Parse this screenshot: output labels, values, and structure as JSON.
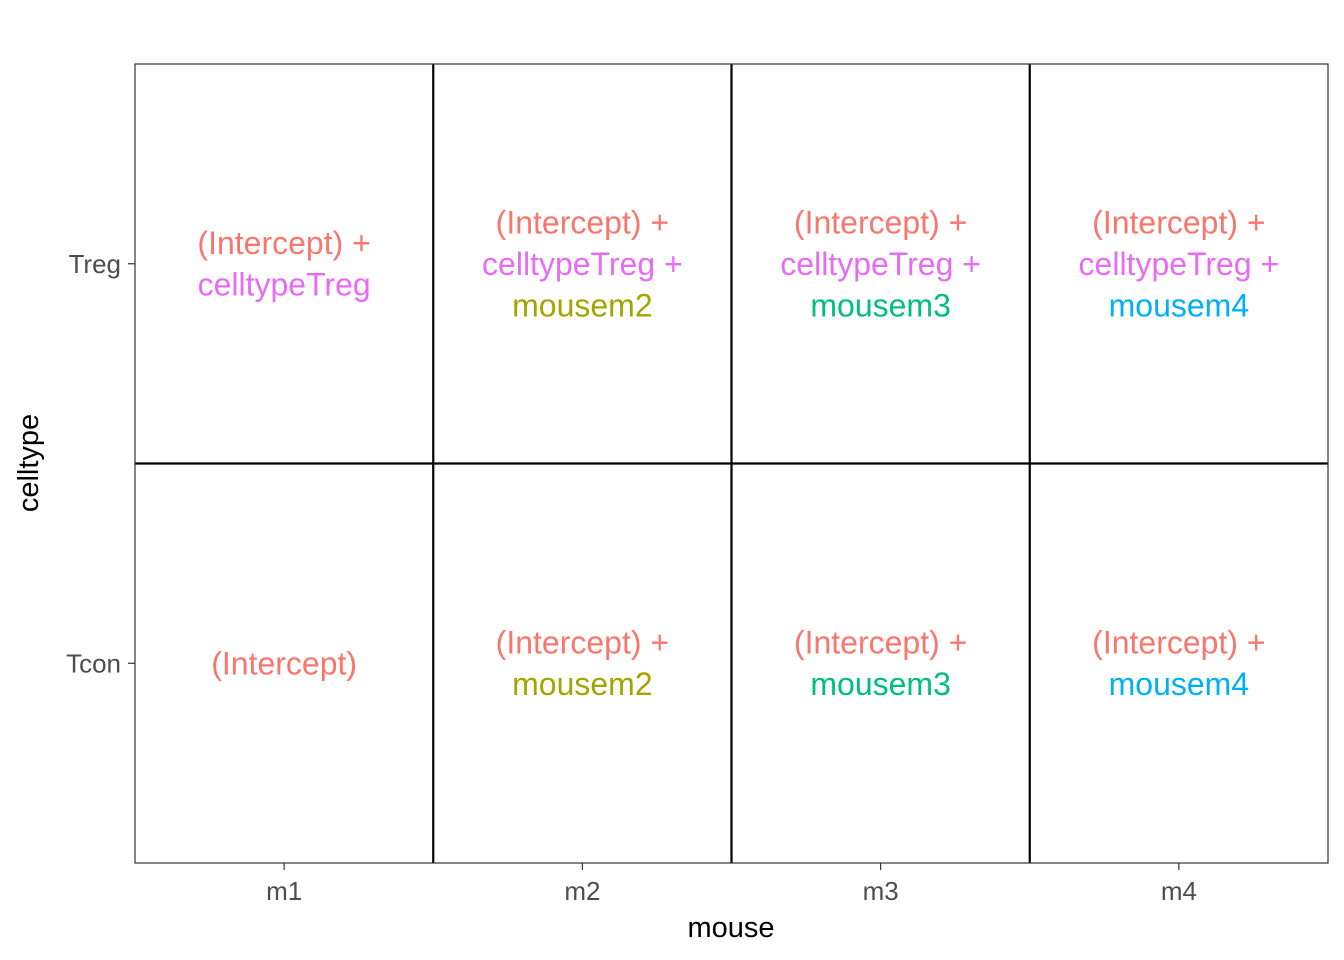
{
  "chart_data": {
    "type": "table",
    "xlabel": "mouse",
    "ylabel": "celltype",
    "x_categories": [
      "m1",
      "m2",
      "m3",
      "m4"
    ],
    "y_categories": [
      "Treg",
      "Tcon"
    ],
    "term_colors": {
      "(Intercept)": "#F8766D",
      "celltypeTreg": "#E76BF3",
      "mousem2": "#A3A500",
      "mousem3": "#00BF7D",
      "mousem4": "#00B0F6"
    },
    "cells": [
      {
        "row": "Treg",
        "col": "m1",
        "lines": [
          {
            "text": "(Intercept) +",
            "term": "(Intercept)"
          },
          {
            "text": "celltypeTreg",
            "term": "celltypeTreg"
          }
        ]
      },
      {
        "row": "Treg",
        "col": "m2",
        "lines": [
          {
            "text": "(Intercept) +",
            "term": "(Intercept)"
          },
          {
            "text": "celltypeTreg +",
            "term": "celltypeTreg"
          },
          {
            "text": "mousem2",
            "term": "mousem2"
          }
        ]
      },
      {
        "row": "Treg",
        "col": "m3",
        "lines": [
          {
            "text": "(Intercept) +",
            "term": "(Intercept)"
          },
          {
            "text": "celltypeTreg +",
            "term": "celltypeTreg"
          },
          {
            "text": "mousem3",
            "term": "mousem3"
          }
        ]
      },
      {
        "row": "Treg",
        "col": "m4",
        "lines": [
          {
            "text": "(Intercept) +",
            "term": "(Intercept)"
          },
          {
            "text": "celltypeTreg +",
            "term": "celltypeTreg"
          },
          {
            "text": "mousem4",
            "term": "mousem4"
          }
        ]
      },
      {
        "row": "Tcon",
        "col": "m1",
        "lines": [
          {
            "text": "(Intercept)",
            "term": "(Intercept)"
          }
        ]
      },
      {
        "row": "Tcon",
        "col": "m2",
        "lines": [
          {
            "text": "(Intercept) +",
            "term": "(Intercept)"
          },
          {
            "text": "mousem2",
            "term": "mousem2"
          }
        ]
      },
      {
        "row": "Tcon",
        "col": "m3",
        "lines": [
          {
            "text": "(Intercept) +",
            "term": "(Intercept)"
          },
          {
            "text": "mousem3",
            "term": "mousem3"
          }
        ]
      },
      {
        "row": "Tcon",
        "col": "m4",
        "lines": [
          {
            "text": "(Intercept) +",
            "term": "(Intercept)"
          },
          {
            "text": "mousem4",
            "term": "mousem4"
          }
        ]
      }
    ]
  }
}
